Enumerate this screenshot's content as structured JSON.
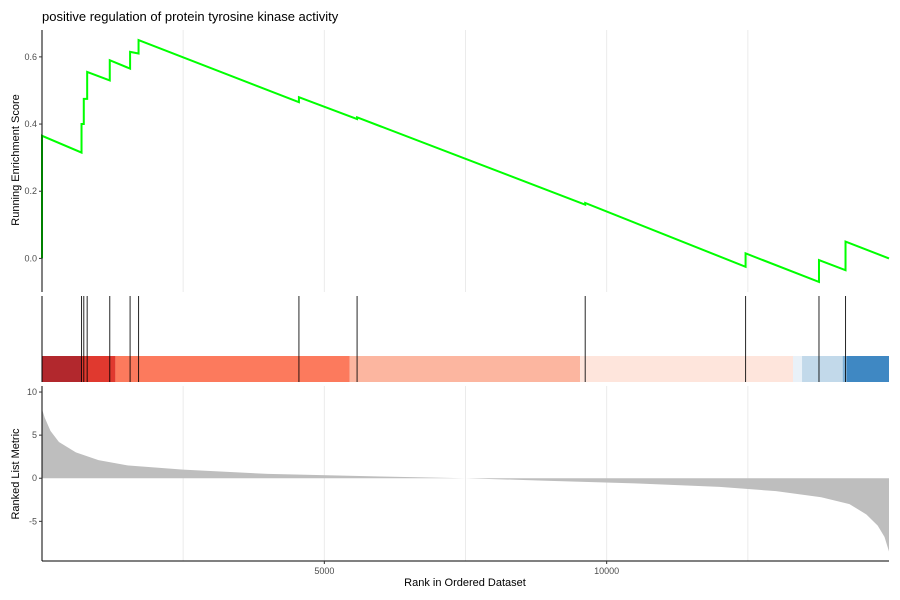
{
  "chart_data": {
    "type": "line",
    "title": "positive regulation of protein tyrosine kinase activity",
    "xlabel": "Rank in Ordered Dataset",
    "x_ticks": [
      5000,
      10000
    ],
    "x_range": [
      0,
      15000
    ],
    "grid": true,
    "panels": {
      "enrichment": {
        "ylabel": "Running Enrichment Score",
        "y_ticks": [
          0.0,
          0.2,
          0.4,
          0.6
        ],
        "y_tick_labels": [
          "0.0",
          "0.2",
          "0.4",
          "0.6"
        ],
        "ylim": [
          -0.1,
          0.68
        ],
        "line_color": "#00ff00",
        "series": [
          {
            "x": [
              0,
              0,
              700,
              700,
              740,
              740,
              800,
              800,
              1200,
              1200,
              1560,
              1560,
              1710,
              1710,
              4550,
              4550,
              5580,
              5580,
              9620,
              9620,
              12460,
              12460,
              13760,
              13760,
              14230,
              14230,
              15000
            ],
            "y": [
              0.0,
              0.365,
              0.315,
              0.4,
              0.4,
              0.475,
              0.475,
              0.555,
              0.53,
              0.59,
              0.565,
              0.615,
              0.61,
              0.65,
              0.465,
              0.48,
              0.415,
              0.42,
              0.16,
              0.165,
              -0.025,
              0.015,
              -0.07,
              -0.005,
              -0.035,
              0.05,
              0.0
            ]
          }
        ]
      },
      "hits": {
        "positions": [
          0,
          700,
          740,
          800,
          1200,
          1560,
          1710,
          4550,
          5580,
          9620,
          12460,
          13760,
          14230
        ]
      },
      "heat_bar": {
        "segments": [
          {
            "from": 0,
            "to": 700,
            "color": "#b2282d"
          },
          {
            "from": 700,
            "to": 1300,
            "color": "#e0392f"
          },
          {
            "from": 1300,
            "to": 5450,
            "color": "#fc7a5d"
          },
          {
            "from": 5450,
            "to": 9530,
            "color": "#fcb6a0"
          },
          {
            "from": 9530,
            "to": 13300,
            "color": "#fee5dc"
          },
          {
            "from": 13300,
            "to": 13460,
            "color": "#e9f1f8"
          },
          {
            "from": 13460,
            "to": 14180,
            "color": "#c2d9ea"
          },
          {
            "from": 14180,
            "to": 14250,
            "color": "#7eb0d6"
          },
          {
            "from": 14250,
            "to": 15000,
            "color": "#3f88c3"
          }
        ]
      },
      "ranked_metric": {
        "ylabel": "Ranked List Metric",
        "y_ticks": [
          -5,
          0,
          5,
          10
        ],
        "y_tick_labels": [
          "-5",
          "0",
          "5",
          "10"
        ],
        "ylim": [
          -9.6,
          10.7
        ],
        "fill_color": "#bebebe",
        "x": [
          0,
          50,
          150,
          300,
          600,
          1000,
          1500,
          2500,
          4000,
          6000,
          7500,
          9000,
          10500,
          12000,
          13000,
          13800,
          14300,
          14600,
          14800,
          14920,
          15000
        ],
        "y": [
          8.0,
          7.0,
          5.5,
          4.2,
          3.0,
          2.1,
          1.5,
          1.0,
          0.5,
          0.2,
          0.0,
          -0.3,
          -0.6,
          -1.0,
          -1.5,
          -2.2,
          -3.0,
          -4.2,
          -5.5,
          -6.8,
          -8.5
        ]
      }
    }
  }
}
